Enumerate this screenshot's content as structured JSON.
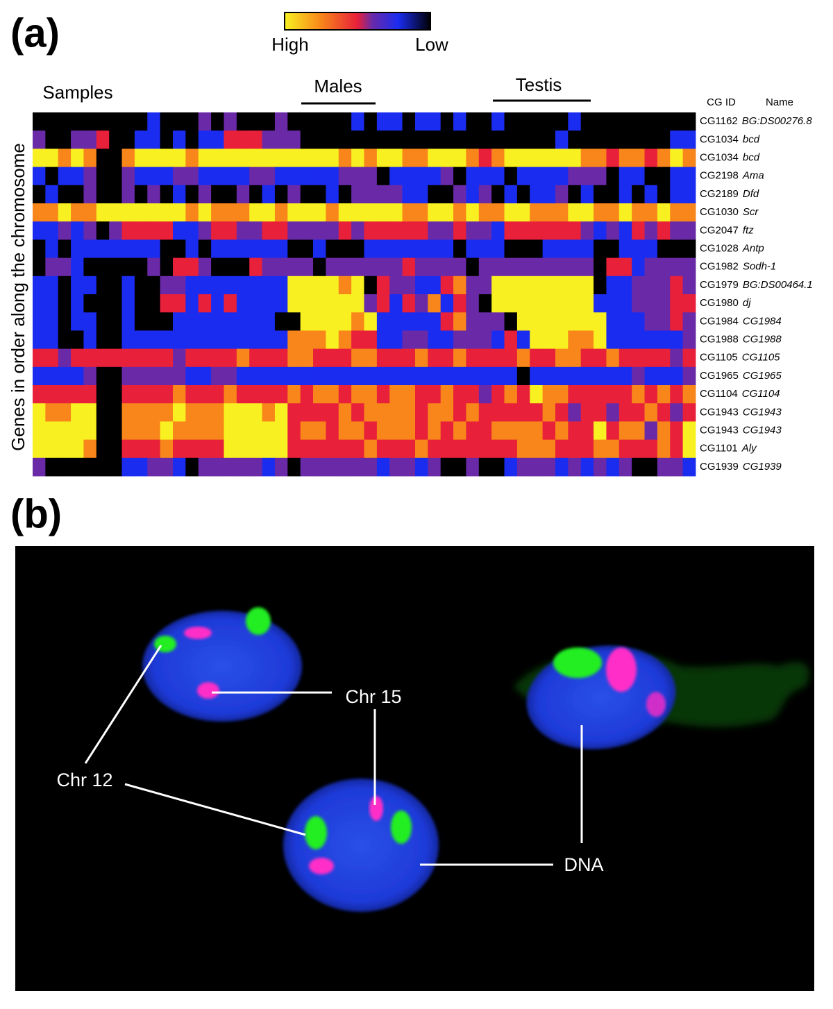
{
  "panel_a": {
    "label": "(a)",
    "colorbar": {
      "high": "High",
      "low": "Low",
      "colors": [
        "#000000",
        "#1a2cf0",
        "#6a2aa8",
        "#e8203a",
        "#f8861a",
        "#f8f020"
      ]
    },
    "samples_label": "Samples",
    "groups": [
      {
        "label": "Males"
      },
      {
        "label": "Testis"
      }
    ],
    "y_label": "Genes in order along the chromosome",
    "columns": {
      "id": "CG ID",
      "name": "Name"
    },
    "genes": [
      {
        "id": "CG1162",
        "name": "BG:DS00276.8",
        "values": [
          0,
          0,
          0,
          0,
          0,
          0,
          0,
          0,
          0,
          1,
          0,
          0,
          0,
          2,
          0,
          2,
          0,
          0,
          0,
          2,
          0,
          0,
          0,
          0,
          0,
          1,
          0,
          1,
          1,
          0,
          1,
          1,
          0,
          1,
          0,
          0,
          1,
          0,
          0,
          0,
          0,
          0,
          1,
          0,
          0,
          0,
          0,
          0,
          0,
          0,
          0,
          0
        ]
      },
      {
        "id": "CG1034",
        "name": "bcd",
        "values": [
          2,
          0,
          0,
          2,
          2,
          3,
          0,
          0,
          1,
          1,
          0,
          1,
          0,
          1,
          1,
          3,
          3,
          3,
          2,
          2,
          2,
          0,
          0,
          0,
          0,
          0,
          0,
          0,
          0,
          0,
          0,
          0,
          0,
          0,
          0,
          0,
          0,
          0,
          0,
          0,
          0,
          1,
          0,
          0,
          0,
          0,
          0,
          0,
          0,
          0,
          1,
          1
        ]
      },
      {
        "id": "CG1034",
        "name": "bcd",
        "values": [
          5,
          5,
          4,
          5,
          4,
          0,
          0,
          4,
          5,
          5,
          5,
          5,
          4,
          5,
          5,
          5,
          5,
          5,
          5,
          5,
          5,
          5,
          5,
          5,
          4,
          5,
          4,
          5,
          5,
          4,
          4,
          5,
          5,
          5,
          4,
          3,
          4,
          5,
          5,
          5,
          5,
          5,
          5,
          4,
          4,
          3,
          4,
          4,
          3,
          4,
          5,
          4
        ]
      },
      {
        "id": "CG2198",
        "name": "Ama",
        "values": [
          1,
          0,
          1,
          1,
          2,
          0,
          0,
          2,
          1,
          1,
          1,
          2,
          2,
          1,
          1,
          1,
          1,
          2,
          2,
          1,
          1,
          1,
          1,
          1,
          2,
          2,
          2,
          0,
          1,
          1,
          1,
          1,
          2,
          0,
          1,
          1,
          1,
          0,
          1,
          1,
          1,
          1,
          2,
          2,
          2,
          0,
          1,
          1,
          0,
          0,
          1,
          1
        ]
      },
      {
        "id": "CG2189",
        "name": "Dfd",
        "values": [
          0,
          1,
          0,
          0,
          2,
          0,
          0,
          2,
          0,
          2,
          0,
          1,
          0,
          2,
          0,
          0,
          2,
          0,
          1,
          0,
          2,
          0,
          0,
          1,
          0,
          2,
          2,
          2,
          2,
          1,
          1,
          0,
          0,
          2,
          1,
          2,
          0,
          1,
          0,
          1,
          1,
          2,
          0,
          1,
          0,
          0,
          1,
          0,
          1,
          0,
          1,
          1
        ]
      },
      {
        "id": "CG1030",
        "name": "Scr",
        "values": [
          4,
          4,
          5,
          4,
          4,
          5,
          5,
          5,
          5,
          5,
          5,
          5,
          4,
          5,
          4,
          4,
          4,
          5,
          5,
          4,
          5,
          5,
          5,
          4,
          5,
          5,
          5,
          5,
          5,
          4,
          4,
          5,
          5,
          4,
          5,
          4,
          4,
          5,
          5,
          4,
          4,
          4,
          5,
          5,
          4,
          4,
          5,
          4,
          4,
          5,
          4,
          4
        ]
      },
      {
        "id": "CG2047",
        "name": "ftz",
        "values": [
          1,
          1,
          2,
          1,
          2,
          0,
          2,
          3,
          3,
          3,
          3,
          1,
          1,
          2,
          3,
          3,
          2,
          2,
          3,
          3,
          2,
          2,
          2,
          2,
          3,
          2,
          3,
          3,
          3,
          3,
          3,
          2,
          2,
          3,
          2,
          2,
          1,
          3,
          3,
          3,
          3,
          3,
          3,
          2,
          1,
          2,
          1,
          3,
          2,
          3,
          2,
          2
        ]
      },
      {
        "id": "CG1028",
        "name": "Antp",
        "values": [
          0,
          1,
          0,
          1,
          1,
          1,
          1,
          1,
          1,
          1,
          0,
          0,
          1,
          0,
          1,
          1,
          1,
          1,
          1,
          1,
          0,
          0,
          1,
          0,
          0,
          0,
          1,
          1,
          1,
          1,
          1,
          1,
          1,
          0,
          1,
          1,
          1,
          0,
          0,
          0,
          1,
          1,
          1,
          1,
          0,
          0,
          1,
          1,
          1,
          0,
          0,
          0
        ]
      },
      {
        "id": "CG1982",
        "name": "Sodh-1",
        "values": [
          0,
          2,
          2,
          1,
          0,
          0,
          0,
          0,
          0,
          2,
          0,
          3,
          3,
          2,
          0,
          0,
          0,
          3,
          2,
          2,
          2,
          2,
          0,
          2,
          2,
          2,
          2,
          2,
          2,
          3,
          2,
          2,
          2,
          2,
          0,
          2,
          2,
          2,
          2,
          2,
          2,
          2,
          2,
          2,
          0,
          3,
          3,
          1,
          2,
          2,
          2,
          2
        ]
      },
      {
        "id": "CG1979",
        "name": "BG:DS00464.1",
        "values": [
          1,
          1,
          0,
          1,
          1,
          0,
          0,
          1,
          0,
          0,
          2,
          2,
          1,
          1,
          1,
          1,
          1,
          1,
          1,
          1,
          5,
          5,
          5,
          5,
          4,
          5,
          0,
          3,
          2,
          2,
          1,
          1,
          3,
          4,
          2,
          2,
          5,
          5,
          5,
          5,
          5,
          5,
          5,
          5,
          0,
          1,
          1,
          2,
          2,
          2,
          3,
          2
        ]
      },
      {
        "id": "CG1980",
        "name": "dj",
        "values": [
          1,
          1,
          0,
          1,
          0,
          0,
          0,
          1,
          0,
          0,
          3,
          3,
          1,
          3,
          1,
          3,
          1,
          1,
          1,
          1,
          5,
          5,
          5,
          5,
          5,
          5,
          2,
          3,
          1,
          3,
          2,
          4,
          1,
          3,
          2,
          0,
          5,
          5,
          5,
          5,
          5,
          5,
          5,
          5,
          1,
          1,
          1,
          2,
          2,
          2,
          3,
          3
        ]
      },
      {
        "id": "CG1984",
        "name": "CG1984",
        "values": [
          1,
          1,
          0,
          1,
          1,
          0,
          0,
          1,
          0,
          0,
          0,
          1,
          1,
          1,
          1,
          1,
          1,
          1,
          1,
          0,
          0,
          5,
          5,
          5,
          5,
          4,
          5,
          1,
          1,
          1,
          1,
          1,
          3,
          4,
          2,
          2,
          2,
          0,
          5,
          5,
          5,
          5,
          5,
          5,
          5,
          1,
          1,
          1,
          2,
          2,
          3,
          2
        ]
      },
      {
        "id": "CG1988",
        "name": "CG1988",
        "values": [
          1,
          1,
          0,
          0,
          1,
          0,
          0,
          1,
          1,
          1,
          1,
          1,
          1,
          1,
          1,
          1,
          1,
          1,
          1,
          1,
          4,
          4,
          4,
          5,
          4,
          3,
          3,
          1,
          1,
          2,
          2,
          1,
          1,
          2,
          2,
          2,
          1,
          3,
          1,
          5,
          5,
          5,
          4,
          4,
          5,
          1,
          1,
          1,
          1,
          1,
          1,
          2
        ]
      },
      {
        "id": "CG1105",
        "name": "CG1105",
        "values": [
          3,
          3,
          2,
          3,
          3,
          3,
          3,
          3,
          3,
          3,
          3,
          2,
          3,
          3,
          3,
          3,
          4,
          3,
          3,
          3,
          4,
          4,
          3,
          3,
          3,
          4,
          4,
          3,
          3,
          3,
          4,
          3,
          3,
          4,
          3,
          3,
          3,
          3,
          4,
          3,
          3,
          4,
          4,
          3,
          3,
          4,
          3,
          3,
          3,
          3,
          2,
          3
        ]
      },
      {
        "id": "CG1965",
        "name": "CG1965",
        "values": [
          1,
          1,
          1,
          1,
          2,
          0,
          0,
          2,
          2,
          2,
          2,
          2,
          1,
          1,
          2,
          2,
          1,
          1,
          1,
          1,
          1,
          1,
          1,
          1,
          1,
          1,
          1,
          1,
          1,
          1,
          1,
          1,
          1,
          1,
          1,
          1,
          1,
          1,
          0,
          1,
          1,
          1,
          1,
          1,
          1,
          1,
          1,
          2,
          1,
          1,
          1,
          2
        ]
      },
      {
        "id": "CG1104",
        "name": "CG1104",
        "values": [
          3,
          3,
          3,
          3,
          3,
          0,
          0,
          3,
          3,
          3,
          3,
          4,
          3,
          3,
          3,
          4,
          3,
          3,
          3,
          3,
          4,
          3,
          4,
          4,
          3,
          4,
          4,
          3,
          4,
          4,
          3,
          3,
          4,
          3,
          3,
          2,
          3,
          4,
          3,
          5,
          4,
          4,
          3,
          3,
          3,
          3,
          3,
          4,
          3,
          4,
          3,
          4
        ]
      },
      {
        "id": "CG1943",
        "name": "CG1943",
        "values": [
          5,
          4,
          4,
          5,
          5,
          0,
          0,
          4,
          4,
          4,
          4,
          5,
          4,
          4,
          4,
          5,
          5,
          5,
          4,
          5,
          3,
          3,
          3,
          3,
          4,
          3,
          4,
          4,
          4,
          4,
          3,
          4,
          4,
          3,
          4,
          3,
          3,
          3,
          3,
          3,
          4,
          3,
          2,
          3,
          3,
          2,
          3,
          3,
          4,
          3,
          2,
          3
        ]
      },
      {
        "id": "CG1943",
        "name": "CG1943",
        "values": [
          5,
          5,
          5,
          5,
          5,
          0,
          0,
          4,
          4,
          4,
          5,
          4,
          4,
          4,
          4,
          5,
          5,
          5,
          5,
          5,
          3,
          4,
          4,
          3,
          4,
          4,
          3,
          4,
          4,
          4,
          3,
          4,
          3,
          4,
          3,
          3,
          4,
          4,
          4,
          4,
          3,
          4,
          3,
          3,
          5,
          3,
          4,
          4,
          2,
          4,
          3,
          5
        ]
      },
      {
        "id": "CG1101",
        "name": "Aly",
        "values": [
          5,
          5,
          5,
          5,
          4,
          0,
          0,
          3,
          3,
          3,
          4,
          3,
          3,
          3,
          3,
          5,
          5,
          5,
          5,
          5,
          3,
          3,
          3,
          3,
          3,
          3,
          4,
          3,
          3,
          3,
          4,
          3,
          3,
          3,
          3,
          3,
          3,
          3,
          4,
          4,
          4,
          3,
          3,
          3,
          4,
          4,
          3,
          3,
          3,
          4,
          3,
          5
        ]
      },
      {
        "id": "CG1939",
        "name": "CG1939",
        "values": [
          2,
          0,
          0,
          0,
          0,
          0,
          0,
          1,
          1,
          2,
          2,
          1,
          0,
          2,
          2,
          2,
          2,
          2,
          1,
          2,
          0,
          2,
          2,
          2,
          2,
          2,
          2,
          1,
          2,
          2,
          1,
          2,
          0,
          0,
          2,
          0,
          0,
          1,
          2,
          2,
          2,
          1,
          2,
          1,
          2,
          1,
          2,
          0,
          0,
          2,
          2,
          1
        ]
      }
    ]
  },
  "panel_b": {
    "label": "(b)",
    "annotations": [
      "Chr 15",
      "Chr 12",
      "DNA"
    ]
  }
}
